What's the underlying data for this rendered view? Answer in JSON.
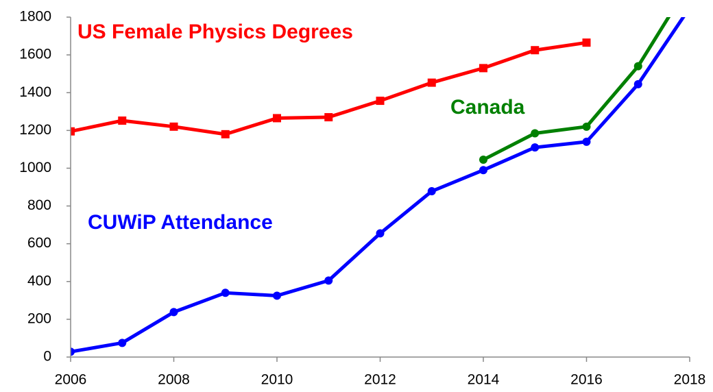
{
  "chart_data": {
    "type": "line",
    "x": [
      2006,
      2007,
      2008,
      2009,
      2010,
      2011,
      2012,
      2013,
      2014,
      2015,
      2016,
      2017,
      2018
    ],
    "series": [
      {
        "name": "US Female Physics Degrees",
        "color": "#ff0000",
        "marker": "square",
        "values": [
          1195,
          1252,
          1220,
          1180,
          1265,
          1270,
          1357,
          1453,
          1530,
          1625,
          1665,
          null,
          null
        ]
      },
      {
        "name": "Canada",
        "color": "#008000",
        "marker": "circle",
        "values": [
          null,
          null,
          null,
          null,
          null,
          null,
          null,
          null,
          1045,
          1185,
          1220,
          1540,
          1980
        ]
      },
      {
        "name": "CUWiP Attendance",
        "color": "#0000ff",
        "marker": "circle",
        "values": [
          28,
          75,
          238,
          340,
          325,
          405,
          655,
          878,
          990,
          1110,
          1140,
          1445,
          1850
        ]
      }
    ],
    "xlim": [
      2006,
      2018
    ],
    "xticks": [
      2006,
      2008,
      2010,
      2012,
      2014,
      2016,
      2018
    ],
    "ylim": [
      0,
      1800
    ],
    "yticks": [
      0,
      200,
      400,
      600,
      800,
      1000,
      1200,
      1400,
      1600,
      1800
    ],
    "grid": false
  }
}
